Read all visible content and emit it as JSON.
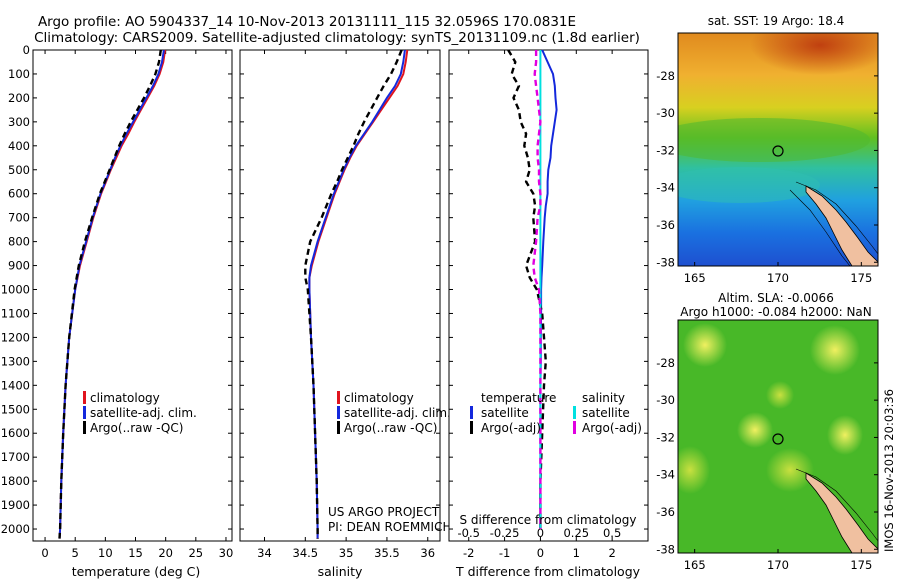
{
  "header": {
    "line1": "Argo profile: AO 5904337_14 10-Nov-2013 20131111_115 32.0596S 170.0831E",
    "line2": "Climatology: CARS2009. Satellite-adjusted climatology: synTS_20131109.nc (1.8d earlier)"
  },
  "chart_data": [
    {
      "type": "line",
      "panel": "temperature",
      "xlabel": "temperature (deg C)",
      "ylabel": "",
      "xlim": [
        -2,
        31
      ],
      "ylim": [
        0,
        2050
      ],
      "x_ticks": [
        "0",
        "5",
        "10",
        "15",
        "20",
        "25",
        "30"
      ],
      "y_ticks": [
        "0",
        "100",
        "200",
        "300",
        "400",
        "500",
        "600",
        "700",
        "800",
        "900",
        "1000",
        "1100",
        "1200",
        "1300",
        "1400",
        "1500",
        "1600",
        "1700",
        "1800",
        "1900",
        "2000"
      ],
      "legend": [
        "climatology",
        "satellite-adj. clim.",
        "Argo(..raw -QC)"
      ],
      "legend_placement": "lower-middle",
      "colors": [
        "#e0141e",
        "#1428dc",
        "#000000"
      ],
      "depth": [
        0,
        50,
        100,
        150,
        200,
        250,
        300,
        350,
        400,
        450,
        500,
        550,
        600,
        700,
        800,
        900,
        1000,
        1200,
        1400,
        1600,
        1800,
        2000,
        2040
      ],
      "series": [
        {
          "name": "climatology",
          "style": "solid",
          "values": [
            19.9,
            19.6,
            19.0,
            18.1,
            17.0,
            15.9,
            14.8,
            13.8,
            12.7,
            11.8,
            10.9,
            10.1,
            9.3,
            8.0,
            6.9,
            5.8,
            5.0,
            4.0,
            3.4,
            3.0,
            2.7,
            2.5,
            2.4
          ]
        },
        {
          "name": "satellite-adj. clim.",
          "style": "solid",
          "values": [
            19.7,
            19.4,
            18.8,
            17.9,
            16.8,
            15.7,
            14.6,
            13.5,
            12.5,
            11.6,
            10.8,
            10.0,
            9.2,
            7.9,
            6.8,
            5.7,
            5.0,
            4.0,
            3.4,
            3.0,
            2.7,
            2.5,
            2.4
          ]
        },
        {
          "name": "Argo(..raw -QC)",
          "style": "dashed",
          "values": [
            19.2,
            18.9,
            18.3,
            17.4,
            16.4,
            15.3,
            14.2,
            13.2,
            12.3,
            11.5,
            10.7,
            9.9,
            9.1,
            7.8,
            6.6,
            5.6,
            4.9,
            4.0,
            3.4,
            3.0,
            2.7,
            2.5,
            2.4
          ]
        }
      ]
    },
    {
      "type": "line",
      "panel": "salinity",
      "xlabel": "salinity",
      "xlim": [
        33.7,
        36.15
      ],
      "ylim": [
        0,
        2050
      ],
      "x_ticks": [
        "34",
        "34.5",
        "35",
        "35.5",
        "36"
      ],
      "legend": [
        "climatology",
        "satellite-adj. clim.",
        "Argo(..raw -QC)"
      ],
      "legend_placement": "lower-middle",
      "colors": [
        "#e0141e",
        "#1428dc",
        "#000000"
      ],
      "depth": [
        0,
        50,
        100,
        150,
        200,
        250,
        300,
        350,
        400,
        450,
        500,
        550,
        600,
        650,
        700,
        800,
        900,
        950,
        1000,
        1100,
        1200,
        1400,
        1600,
        1800,
        2000,
        2040
      ],
      "series": [
        {
          "name": "climatology",
          "style": "solid",
          "values": [
            35.75,
            35.73,
            35.7,
            35.63,
            35.53,
            35.43,
            35.33,
            35.23,
            35.13,
            35.05,
            34.98,
            34.92,
            34.86,
            34.81,
            34.76,
            34.66,
            34.58,
            34.55,
            34.55,
            34.56,
            34.57,
            34.6,
            34.62,
            34.64,
            34.65,
            34.65
          ]
        },
        {
          "name": "satellite-adj. clim.",
          "style": "solid",
          "values": [
            35.72,
            35.7,
            35.67,
            35.6,
            35.5,
            35.41,
            35.32,
            35.22,
            35.12,
            35.04,
            34.97,
            34.91,
            34.85,
            34.8,
            34.75,
            34.65,
            34.57,
            34.55,
            34.55,
            34.56,
            34.57,
            34.6,
            34.62,
            34.64,
            34.65,
            34.65
          ]
        },
        {
          "name": "Argo(..raw -QC)",
          "style": "dashed",
          "values": [
            35.68,
            35.62,
            35.55,
            35.46,
            35.38,
            35.3,
            35.22,
            35.15,
            35.09,
            35.02,
            34.95,
            34.89,
            34.82,
            34.76,
            34.7,
            34.56,
            34.5,
            34.5,
            34.53,
            34.55,
            34.57,
            34.6,
            34.62,
            34.64,
            34.65,
            34.65
          ]
        }
      ]
    },
    {
      "type": "line",
      "panel": "difference",
      "xlabel": "T difference from climatology",
      "xlabel_top": "S difference from climatology",
      "xlim": [
        -2.55,
        3.0
      ],
      "ylim": [
        0,
        2050
      ],
      "x_ticks": [
        "-2",
        "-1",
        "0",
        "1",
        "2"
      ],
      "x_ticks_top": [
        "-0.5",
        "-0.25",
        "0",
        "0.25",
        "0.5"
      ],
      "legend_groups": [
        {
          "title": "temperature",
          "entries": [
            "satellite",
            "Argo(-adj)"
          ],
          "colors": [
            "#1428dc",
            "#000000"
          ]
        },
        {
          "title": "salinity",
          "entries": [
            "satellite",
            "Argo(-adj)"
          ],
          "colors": [
            "#00e0e0",
            "#e000e0"
          ]
        }
      ],
      "depth": [
        0,
        50,
        100,
        150,
        200,
        250,
        300,
        350,
        400,
        450,
        500,
        550,
        600,
        650,
        700,
        800,
        900,
        950,
        1000,
        1100,
        1200,
        1300,
        1400,
        1600,
        1800,
        2000
      ],
      "series": [
        {
          "name": "satellite (temperature)",
          "style": "solid",
          "values": [
            0.05,
            0.2,
            0.35,
            0.4,
            0.42,
            0.45,
            0.4,
            0.35,
            0.3,
            0.28,
            0.22,
            0.2,
            0.2,
            0.15,
            0.12,
            0.08,
            0.05,
            0.03,
            0.02,
            0.02,
            0.01,
            0.01,
            0,
            0,
            0,
            0
          ]
        },
        {
          "name": "Argo(-adj) (temperature)",
          "style": "dashed",
          "values": [
            -0.9,
            -0.7,
            -0.8,
            -0.6,
            -0.75,
            -0.6,
            -0.55,
            -0.4,
            -0.45,
            -0.35,
            -0.3,
            -0.4,
            -0.2,
            -0.15,
            -0.2,
            -0.15,
            -0.4,
            -0.3,
            -0.1,
            0.05,
            0.1,
            0.15,
            0.1,
            0.05,
            0,
            0
          ]
        },
        {
          "name": "satellite (salinity)",
          "style": "solid",
          "values": [
            0,
            0,
            0,
            0,
            0,
            0,
            0,
            0,
            0,
            0,
            0,
            0,
            0,
            0,
            0,
            0,
            0,
            0,
            0,
            0,
            0,
            0,
            0,
            0,
            0,
            0
          ]
        },
        {
          "name": "Argo(-adj) (salinity)",
          "style": "dashed",
          "values": [
            -0.03,
            -0.03,
            -0.04,
            -0.03,
            -0.02,
            -0.01,
            0,
            -0.01,
            -0.02,
            -0.02,
            -0.01,
            -0.01,
            0,
            0,
            -0.02,
            -0.03,
            -0.05,
            -0.04,
            -0.01,
            0,
            0,
            0,
            0,
            0,
            0,
            0
          ]
        }
      ]
    },
    {
      "type": "heatmap",
      "panel": "sst-map",
      "title": "sat. SST: 19 Argo: 18.4",
      "x_ticks": [
        "165",
        "170",
        "175"
      ],
      "y_ticks": [
        "-28",
        "-30",
        "-32",
        "-34",
        "-36",
        "-38"
      ],
      "xlim": [
        164,
        176
      ],
      "ylim": [
        -38.2,
        -25.7
      ],
      "marker": {
        "lon": 170.08,
        "lat": -32.06
      }
    },
    {
      "type": "heatmap",
      "panel": "sla-map",
      "title1": "Altim. SLA: -0.0066",
      "title2": "Argo h1000: -0.084 h2000: NaN",
      "x_ticks": [
        "165",
        "170",
        "175"
      ],
      "y_ticks": [
        "-28",
        "-30",
        "-32",
        "-34",
        "-36",
        "-38"
      ],
      "xlim": [
        164,
        176
      ],
      "ylim": [
        -38.2,
        -25.7
      ],
      "marker": {
        "lon": 170.08,
        "lat": -32.06
      }
    }
  ],
  "annotation": {
    "project1": "US ARGO PROJECT",
    "project2": "PI: DEAN ROEMMICH",
    "timestamp": "IMOS 16-Nov-2013 20:03:36"
  }
}
